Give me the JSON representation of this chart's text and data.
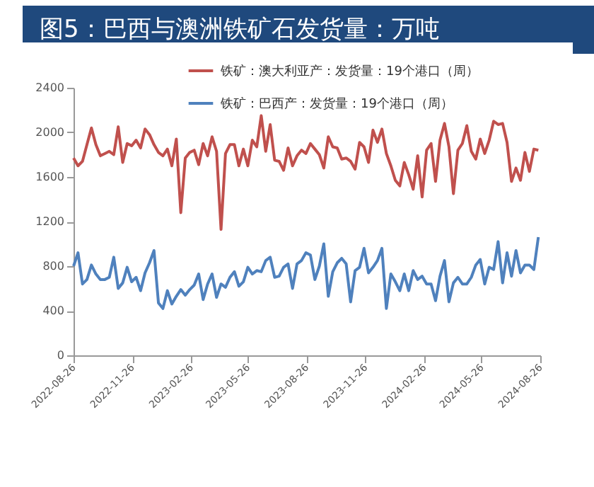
{
  "chart_data": {
    "type": "line",
    "title": "图5：巴西与澳洲铁矿石发货量：万吨",
    "x": [
      "2022-08-26",
      "2022-09-02",
      "2022-09-09",
      "2022-09-16",
      "2022-09-23",
      "2022-09-30",
      "2022-10-07",
      "2022-10-14",
      "2022-10-21",
      "2022-10-28",
      "2022-11-04",
      "2022-11-11",
      "2022-11-18",
      "2022-11-25",
      "2022-12-02",
      "2022-12-09",
      "2022-12-16",
      "2022-12-23",
      "2022-12-30",
      "2023-01-06",
      "2023-01-13",
      "2023-01-20",
      "2023-01-27",
      "2023-02-03",
      "2023-02-10",
      "2023-02-17",
      "2023-02-24",
      "2023-03-03",
      "2023-03-10",
      "2023-03-17",
      "2023-03-24",
      "2023-03-31",
      "2023-04-07",
      "2023-04-14",
      "2023-04-21",
      "2023-04-28",
      "2023-05-05",
      "2023-05-12",
      "2023-05-19",
      "2023-05-26",
      "2023-06-02",
      "2023-06-09",
      "2023-06-16",
      "2023-06-23",
      "2023-06-30",
      "2023-07-07",
      "2023-07-14",
      "2023-07-21",
      "2023-07-28",
      "2023-08-04",
      "2023-08-11",
      "2023-08-18",
      "2023-08-25",
      "2023-09-01",
      "2023-09-08",
      "2023-09-15",
      "2023-09-22",
      "2023-09-29",
      "2023-10-06",
      "2023-10-13",
      "2023-10-20",
      "2023-10-27",
      "2023-11-03",
      "2023-11-10",
      "2023-11-17",
      "2023-11-24",
      "2023-12-01",
      "2023-12-08",
      "2023-12-15",
      "2023-12-22",
      "2023-12-29",
      "2024-01-05",
      "2024-01-12",
      "2024-01-19",
      "2024-01-26",
      "2024-02-02",
      "2024-02-09",
      "2024-02-16",
      "2024-02-23",
      "2024-03-01",
      "2024-03-08",
      "2024-03-15",
      "2024-03-22",
      "2024-03-29",
      "2024-04-05",
      "2024-04-12",
      "2024-04-19",
      "2024-04-26",
      "2024-05-03",
      "2024-05-10",
      "2024-05-17",
      "2024-05-24",
      "2024-05-31",
      "2024-06-07",
      "2024-06-14",
      "2024-06-21",
      "2024-06-28",
      "2024-07-05",
      "2024-07-12",
      "2024-07-19",
      "2024-07-26",
      "2024-08-02",
      "2024-08-09",
      "2024-08-16",
      "2024-08-23"
    ],
    "series": [
      {
        "name": "铁矿：澳大利亚产：发货量：19个港口（周）",
        "color": "#c0504d",
        "values": [
          1770,
          1700,
          1740,
          1890,
          2040,
          1890,
          1790,
          1810,
          1830,
          1800,
          2050,
          1730,
          1900,
          1880,
          1930,
          1860,
          2030,
          1980,
          1890,
          1820,
          1790,
          1850,
          1700,
          1940,
          1280,
          1770,
          1820,
          1840,
          1710,
          1900,
          1790,
          1960,
          1830,
          1130,
          1810,
          1890,
          1890,
          1700,
          1850,
          1700,
          1930,
          1870,
          2150,
          1830,
          2070,
          1750,
          1740,
          1660,
          1860,
          1700,
          1790,
          1840,
          1810,
          1900,
          1850,
          1800,
          1680,
          1960,
          1870,
          1860,
          1760,
          1770,
          1740,
          1670,
          1910,
          1870,
          1730,
          2020,
          1910,
          2030,
          1810,
          1700,
          1570,
          1520,
          1730,
          1620,
          1490,
          1790,
          1420,
          1840,
          1900,
          1560,
          1930,
          2080,
          1870,
          1450,
          1840,
          1900,
          2060,
          1830,
          1760,
          1940,
          1810,
          1930,
          2100,
          2070,
          2080,
          1910,
          1560,
          1680,
          1570,
          1820,
          1650,
          1850,
          1840
        ]
      },
      {
        "name": "铁矿：巴西产：发货量：19个港口（周）",
        "color": "#4f81bd",
        "values": [
          800,
          920,
          640,
          680,
          810,
          730,
          680,
          680,
          700,
          880,
          600,
          650,
          790,
          660,
          700,
          580,
          740,
          830,
          940,
          470,
          420,
          580,
          460,
          530,
          590,
          540,
          590,
          630,
          730,
          500,
          640,
          730,
          520,
          640,
          610,
          700,
          750,
          620,
          660,
          790,
          730,
          760,
          750,
          850,
          880,
          700,
          710,
          790,
          820,
          600,
          820,
          850,
          920,
          900,
          680,
          800,
          1000,
          530,
          750,
          830,
          870,
          820,
          480,
          760,
          790,
          960,
          740,
          790,
          850,
          960,
          420,
          730,
          660,
          580,
          730,
          580,
          760,
          680,
          710,
          640,
          640,
          490,
          710,
          850,
          480,
          650,
          700,
          640,
          640,
          700,
          810,
          860,
          640,
          790,
          770,
          1020,
          650,
          920,
          710,
          940,
          740,
          810,
          810,
          770,
          1060
        ]
      }
    ],
    "xlim": [
      "2022-08-26",
      "2024-08-26"
    ],
    "xticks": [
      "2022-08-26",
      "2022-11-26",
      "2023-02-26",
      "2023-05-26",
      "2023-08-26",
      "2023-11-26",
      "2024-02-26",
      "2024-05-26",
      "2024-08-26"
    ],
    "ylim": [
      0,
      2400
    ],
    "yticks": [
      0,
      400,
      800,
      1200,
      1600,
      2000,
      2400
    ],
    "legend": "top",
    "grid": false,
    "marker": "none",
    "line_style": "solid"
  }
}
